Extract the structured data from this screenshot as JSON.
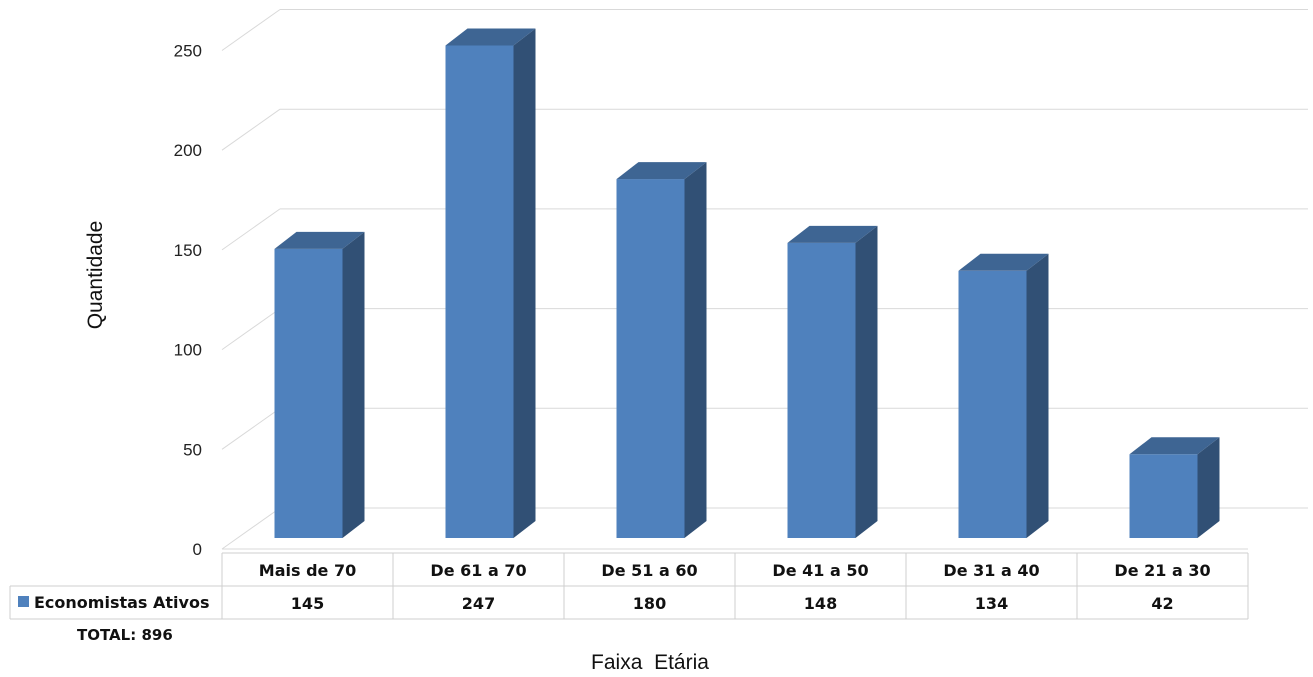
{
  "chart_data": {
    "type": "bar",
    "style": "3d-column",
    "categories": [
      "Mais de 70",
      "De 61 a 70",
      "De 51 a 60",
      "De 41 a 50",
      "De 31 a 40",
      "De 21 a 30"
    ],
    "series": [
      {
        "name": "Economistas Ativos",
        "values": [
          145,
          247,
          180,
          148,
          134,
          42
        ],
        "color": "#4f81bd"
      }
    ],
    "ylabel": "Quantidade",
    "xlabel": "Faixa  Etária",
    "ylim": [
      0,
      250
    ],
    "yticks": [
      0,
      50,
      100,
      150,
      200,
      250
    ],
    "grid": true,
    "data_table": true,
    "legend": "data-table"
  },
  "footer": {
    "total_label": "TOTAL:",
    "total_value": "896"
  }
}
